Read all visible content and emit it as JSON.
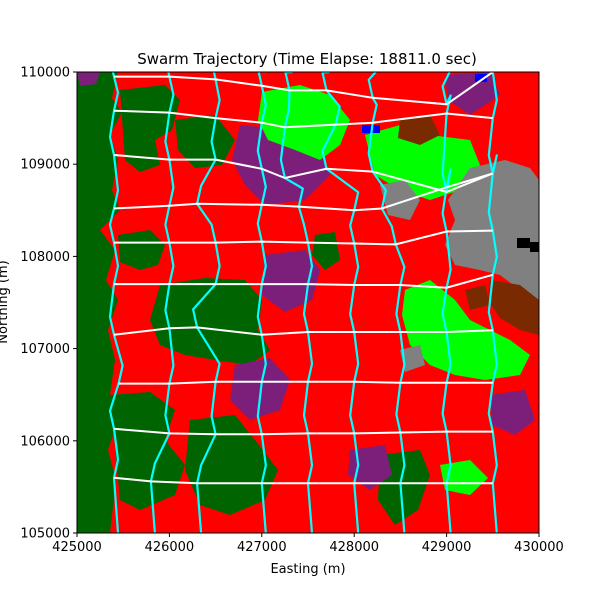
{
  "chart_data": {
    "type": "map-trajectory",
    "title": "Swarm Trajectory (Time Elapse: 18811.0 sec)",
    "xlabel": "Easting (m)",
    "ylabel": "Northing (m)",
    "xlim": [
      425000,
      430000
    ],
    "ylim": [
      105000,
      110000
    ],
    "x_ticks": [
      "425000",
      "426000",
      "427000",
      "428000",
      "429000",
      "430000"
    ],
    "y_ticks": [
      "105000",
      "106000",
      "107000",
      "108000",
      "109000",
      "110000"
    ],
    "colors": {
      "background_land": "#ff0000",
      "forest": "#006400",
      "grassland": "#00ff00",
      "wetland": "#7b1f7b",
      "urban": "#808080",
      "soil": "#7a2a00",
      "water": "#0000ff",
      "structure": "#000000",
      "trajectory": "#ffffff",
      "track": "#00ffff"
    },
    "series": [
      {
        "x": [
          425400,
          426000,
          426500,
          427000,
          427300,
          427700,
          428200,
          429000,
          429500
        ],
        "y": [
          109950,
          109950,
          109920,
          109850,
          109800,
          109800,
          109720,
          109650,
          110000
        ]
      },
      {
        "x": [
          425400,
          426000,
          426500,
          427000,
          427250,
          427800,
          428200,
          429000,
          429500
        ],
        "y": [
          109580,
          109560,
          109500,
          109450,
          109400,
          109430,
          109450,
          109550,
          109500
        ]
      },
      {
        "x": [
          425400,
          426000,
          426500,
          427000,
          427250,
          427700,
          428200,
          429000,
          429500
        ],
        "y": [
          109100,
          109050,
          109050,
          108950,
          108850,
          108950,
          108920,
          108700,
          108900
        ]
      },
      {
        "x": [
          425400,
          426000,
          426300,
          427000,
          427400,
          428000,
          428300,
          429000,
          429500
        ],
        "y": [
          108520,
          108550,
          108570,
          108560,
          108540,
          108500,
          108520,
          108750,
          108900
        ]
      },
      {
        "x": [
          425400,
          426000,
          426500,
          427000,
          427500,
          428000,
          428450,
          429000,
          429500
        ],
        "y": [
          108150,
          108150,
          108150,
          108160,
          108150,
          108140,
          108130,
          108270,
          108280
        ]
      },
      {
        "x": [
          425400,
          426000,
          426500,
          427000,
          427500,
          428000,
          428500,
          429000,
          429500
        ],
        "y": [
          107700,
          107700,
          107700,
          107700,
          107700,
          107690,
          107690,
          107660,
          107800
        ]
      },
      {
        "x": [
          425400,
          426000,
          426300,
          427000,
          427500,
          428000,
          428500,
          429000,
          429500
        ],
        "y": [
          107150,
          107220,
          107230,
          107150,
          107180,
          107180,
          107180,
          107180,
          107200
        ]
      },
      {
        "x": [
          425450,
          426000,
          426500,
          427000,
          427500,
          428000,
          428500,
          429000,
          429500
        ],
        "y": [
          106620,
          106620,
          106640,
          106640,
          106640,
          106640,
          106630,
          106630,
          106630
        ]
      },
      {
        "x": [
          425400,
          426000,
          426500,
          427000,
          427500,
          428000,
          428500,
          429000,
          429500
        ],
        "y": [
          106130,
          106080,
          106070,
          106070,
          106080,
          106080,
          106090,
          106100,
          106100
        ]
      },
      {
        "x": [
          425400,
          425800,
          426300,
          427000,
          427500,
          428000,
          428500,
          429000,
          429500
        ],
        "y": [
          105600,
          105560,
          105540,
          105540,
          105540,
          105540,
          105540,
          105540,
          105540
        ]
      }
    ]
  }
}
